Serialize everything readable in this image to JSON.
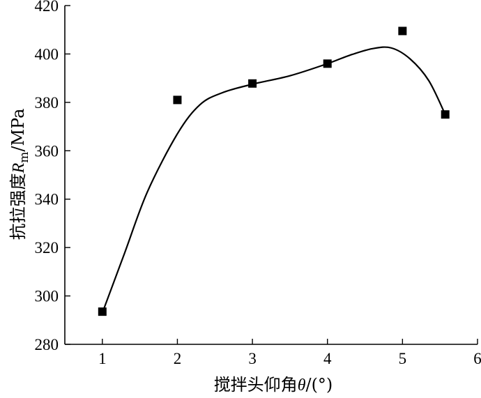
{
  "chart_data": {
    "type": "scatter",
    "x": [
      1,
      2,
      3,
      4,
      5,
      5.57
    ],
    "y": [
      293.5,
      381,
      387.8,
      396,
      409.5,
      375
    ],
    "fit_curve": {
      "x": [
        1,
        1.3,
        1.6,
        2,
        2.3,
        2.6,
        3,
        3.5,
        4,
        4.3,
        4.6,
        4.85,
        5.1,
        5.35,
        5.57
      ],
      "y": [
        293,
        318,
        343,
        367,
        379,
        384,
        387.5,
        391,
        396,
        399.5,
        402.2,
        402.5,
        398,
        389,
        375
      ]
    },
    "xlabel_main": "搅拌头仰角",
    "xlabel_symbol": "θ",
    "xlabel_unit": "/(°)",
    "ylabel_main": "抗拉强度",
    "ylabel_symbol": "R",
    "ylabel_sub": "m",
    "ylabel_unit": "/MPa",
    "xlim": [
      0.5,
      6
    ],
    "ylim": [
      280,
      420
    ],
    "xticks": [
      1,
      2,
      3,
      4,
      5,
      6
    ],
    "yticks": [
      280,
      300,
      320,
      340,
      360,
      380,
      400,
      420
    ],
    "grid": false,
    "marker": "filled-square"
  }
}
